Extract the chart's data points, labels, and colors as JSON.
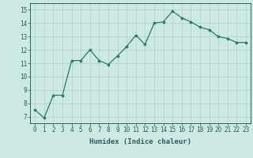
{
  "x": [
    0,
    1,
    2,
    3,
    4,
    5,
    6,
    7,
    8,
    9,
    10,
    11,
    12,
    13,
    14,
    15,
    16,
    17,
    18,
    19,
    20,
    21,
    22,
    23
  ],
  "y": [
    7.5,
    6.9,
    8.6,
    8.6,
    11.2,
    11.2,
    12.0,
    11.2,
    10.9,
    11.55,
    12.25,
    13.1,
    12.4,
    14.0,
    14.1,
    14.9,
    14.4,
    14.1,
    13.7,
    13.5,
    13.0,
    12.85,
    12.55,
    12.55
  ],
  "line_color": "#2a7a6e",
  "marker_color": "#2a7a6e",
  "bg_color": "#cce9e2",
  "grid_color": "#b0d4cc",
  "xlabel": "Humidex (Indice chaleur)",
  "xlim": [
    -0.5,
    23.5
  ],
  "ylim": [
    6.5,
    15.5
  ],
  "yticks": [
    7,
    8,
    9,
    10,
    11,
    12,
    13,
    14,
    15
  ],
  "xticks": [
    0,
    1,
    2,
    3,
    4,
    5,
    6,
    7,
    8,
    9,
    10,
    11,
    12,
    13,
    14,
    15,
    16,
    17,
    18,
    19,
    20,
    21,
    22,
    23
  ],
  "label_fontsize": 6.5,
  "tick_fontsize": 5.5
}
